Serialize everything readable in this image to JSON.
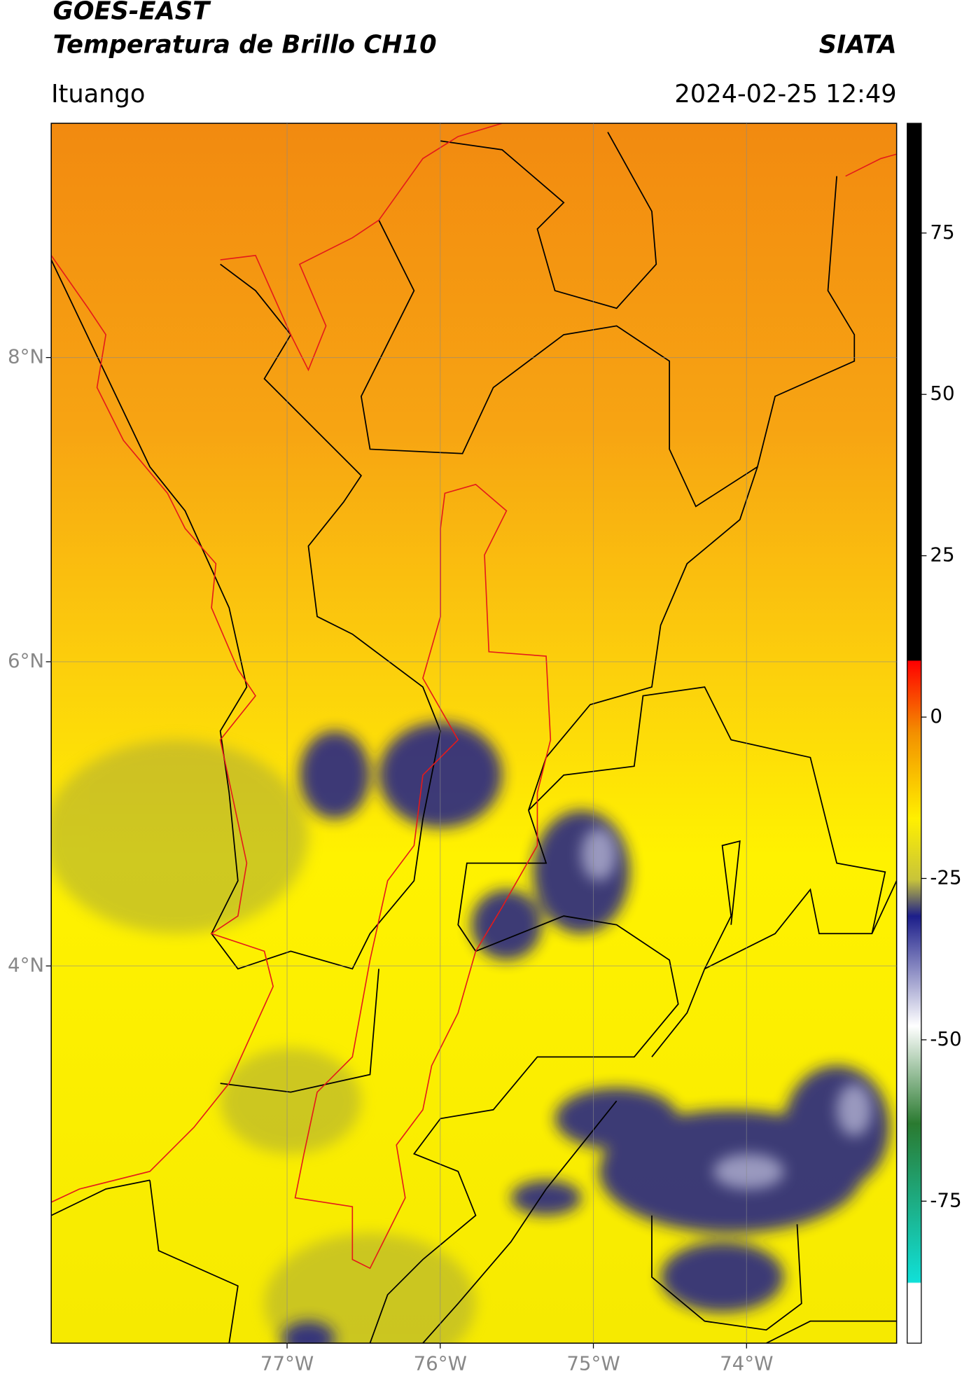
{
  "header": {
    "title": "GOES-EAST",
    "subtitle": "Temperatura de Brillo CH10",
    "organization": "SIATA",
    "location": "Ituango",
    "datetime": "2024-02-25 12:49"
  },
  "map": {
    "lon_range": [
      -78.54,
      -73.02
    ],
    "lat_range": [
      1.52,
      9.54
    ],
    "lon_ticks": [
      {
        "value": -77,
        "label": "77°W"
      },
      {
        "value": -76,
        "label": "76°W"
      },
      {
        "value": -75,
        "label": "75°W"
      },
      {
        "value": -74,
        "label": "74°W"
      }
    ],
    "lat_ticks": [
      {
        "value": 8,
        "label": "8°N"
      },
      {
        "value": 6,
        "label": "6°N"
      },
      {
        "value": 4,
        "label": "4°N"
      }
    ]
  },
  "colorbar": {
    "range": [
      -97,
      92
    ],
    "ticks": [
      75,
      50,
      25,
      0,
      -25,
      -50,
      -75
    ]
  }
}
